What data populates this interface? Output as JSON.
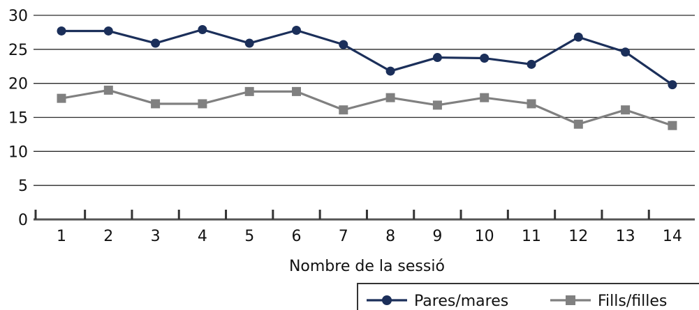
{
  "chart_data": {
    "type": "line",
    "title": "",
    "xlabel": "Nombre de la sessió",
    "ylabel": "",
    "ylim": [
      0,
      30
    ],
    "yticks": [
      0,
      5,
      10,
      15,
      20,
      25,
      30
    ],
    "categories": [
      "1",
      "2",
      "3",
      "4",
      "5",
      "6",
      "7",
      "8",
      "9",
      "10",
      "11",
      "12",
      "13",
      "14"
    ],
    "grid": "horizontal",
    "legend_position": "bottom-right",
    "series": [
      {
        "name": "Pares/mares",
        "marker": "circle",
        "color": "#1b2f5a",
        "values": [
          27.7,
          27.7,
          25.9,
          27.9,
          25.9,
          27.8,
          25.7,
          21.8,
          23.8,
          23.7,
          22.8,
          26.8,
          24.6,
          19.8
        ]
      },
      {
        "name": "Fills/filles",
        "marker": "square",
        "color": "#808080",
        "values": [
          17.8,
          19.0,
          17.0,
          17.0,
          18.8,
          18.8,
          16.1,
          17.9,
          16.8,
          17.9,
          17.0,
          14.0,
          16.1,
          13.8
        ]
      }
    ]
  }
}
